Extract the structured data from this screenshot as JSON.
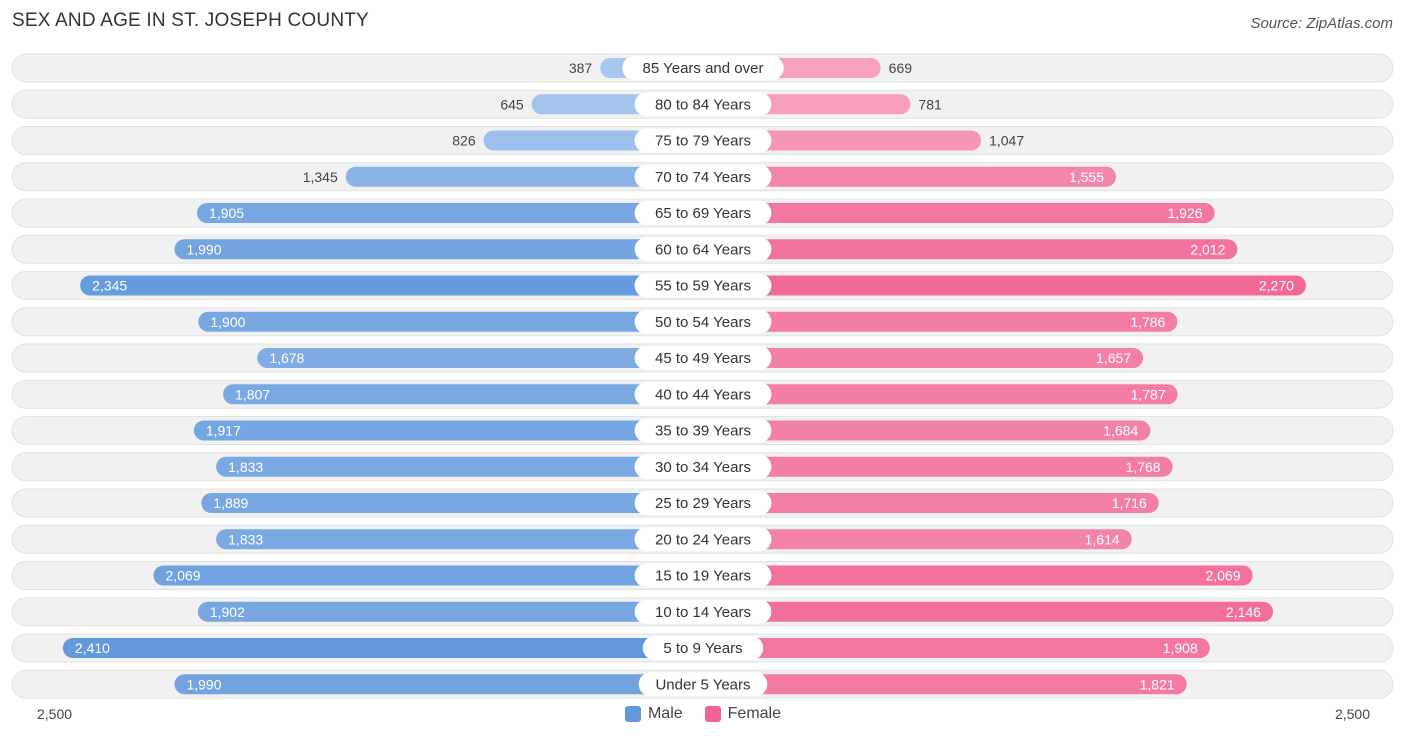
{
  "title": "SEX AND AGE IN ST. JOSEPH COUNTY",
  "source": "Source: ZipAtlas.com",
  "colors": {
    "male": "#6399dc",
    "male_light": "#a9c8ee",
    "female": "#f16593",
    "female_light": "#f7aac4",
    "row_bg": "#f1f1f1"
  },
  "legend": {
    "male_label": "Male",
    "female_label": "Female"
  },
  "axis": {
    "left_label": "2,500",
    "right_label": "2,500"
  },
  "chart_data": {
    "type": "bar",
    "orientation": "horizontal-diverging",
    "title": "SEX AND AGE IN ST. JOSEPH COUNTY",
    "xlim": [
      -2500,
      2500
    ],
    "categories": [
      "85 Years and over",
      "80 to 84 Years",
      "75 to 79 Years",
      "70 to 74 Years",
      "65 to 69 Years",
      "60 to 64 Years",
      "55 to 59 Years",
      "50 to 54 Years",
      "45 to 49 Years",
      "40 to 44 Years",
      "35 to 39 Years",
      "30 to 34 Years",
      "25 to 29 Years",
      "20 to 24 Years",
      "15 to 19 Years",
      "10 to 14 Years",
      "5 to 9 Years",
      "Under 5 Years"
    ],
    "series": [
      {
        "name": "Male",
        "values": [
          387,
          645,
          826,
          1345,
          1905,
          1990,
          2345,
          1900,
          1678,
          1807,
          1917,
          1833,
          1889,
          1833,
          2069,
          1902,
          2410,
          1990
        ]
      },
      {
        "name": "Female",
        "values": [
          669,
          781,
          1047,
          1555,
          1926,
          2012,
          2270,
          1786,
          1657,
          1787,
          1684,
          1768,
          1716,
          1614,
          2069,
          2146,
          1908,
          1821
        ]
      }
    ],
    "legend_position": "bottom-center"
  }
}
